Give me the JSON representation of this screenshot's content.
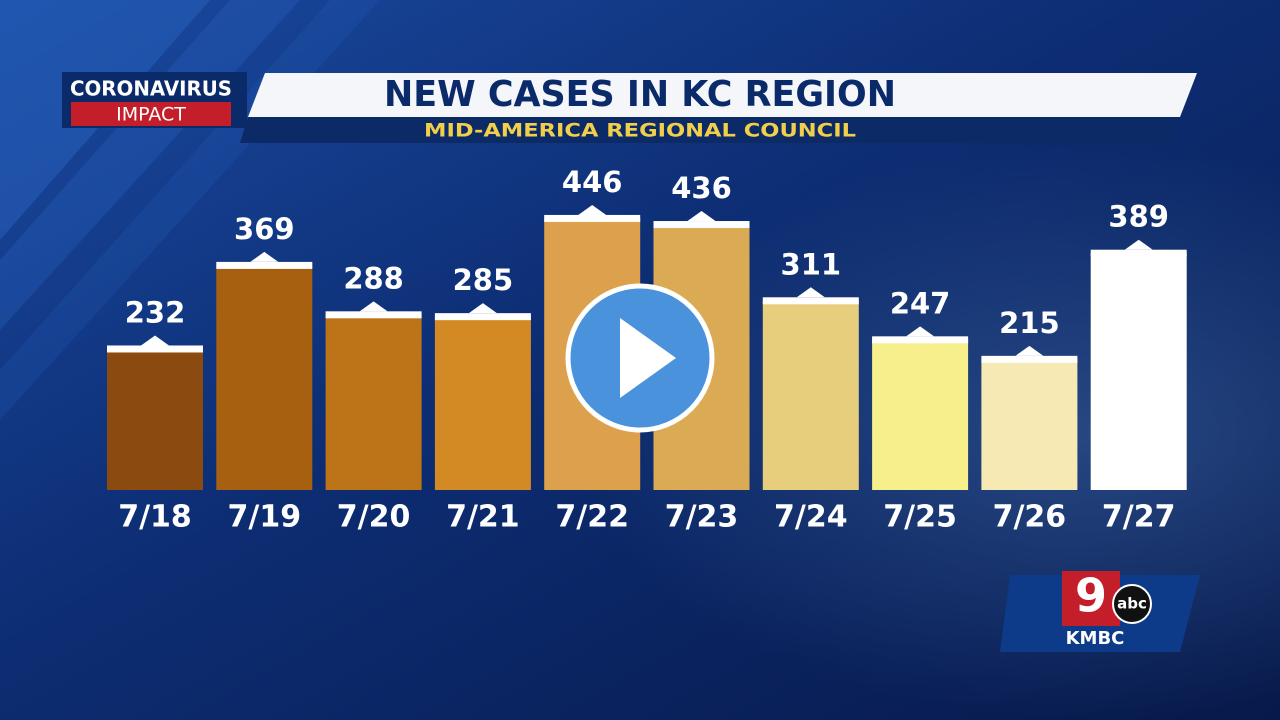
{
  "chart_data": {
    "type": "bar",
    "badge": {
      "line1": "CORONAVIRUS",
      "line2": "IMPACT"
    },
    "title": "NEW CASES IN KC REGION",
    "subtitle": "MID-AMERICA REGIONAL COUNCIL",
    "categories": [
      "7/18",
      "7/19",
      "7/20",
      "7/21",
      "7/22",
      "7/23",
      "7/24",
      "7/25",
      "7/26",
      "7/27"
    ],
    "values": [
      232,
      369,
      288,
      285,
      446,
      436,
      311,
      247,
      215,
      389
    ],
    "colors": [
      "#8a4a10",
      "#a6600f",
      "#bd7418",
      "#d38a24",
      "#dda04c",
      "#dbaa55",
      "#e6ce7c",
      "#f6ef8c",
      "#f7e9b3",
      "#ffffff"
    ],
    "logo": {
      "number": "9",
      "network": "abc",
      "station": "KMBC"
    }
  }
}
